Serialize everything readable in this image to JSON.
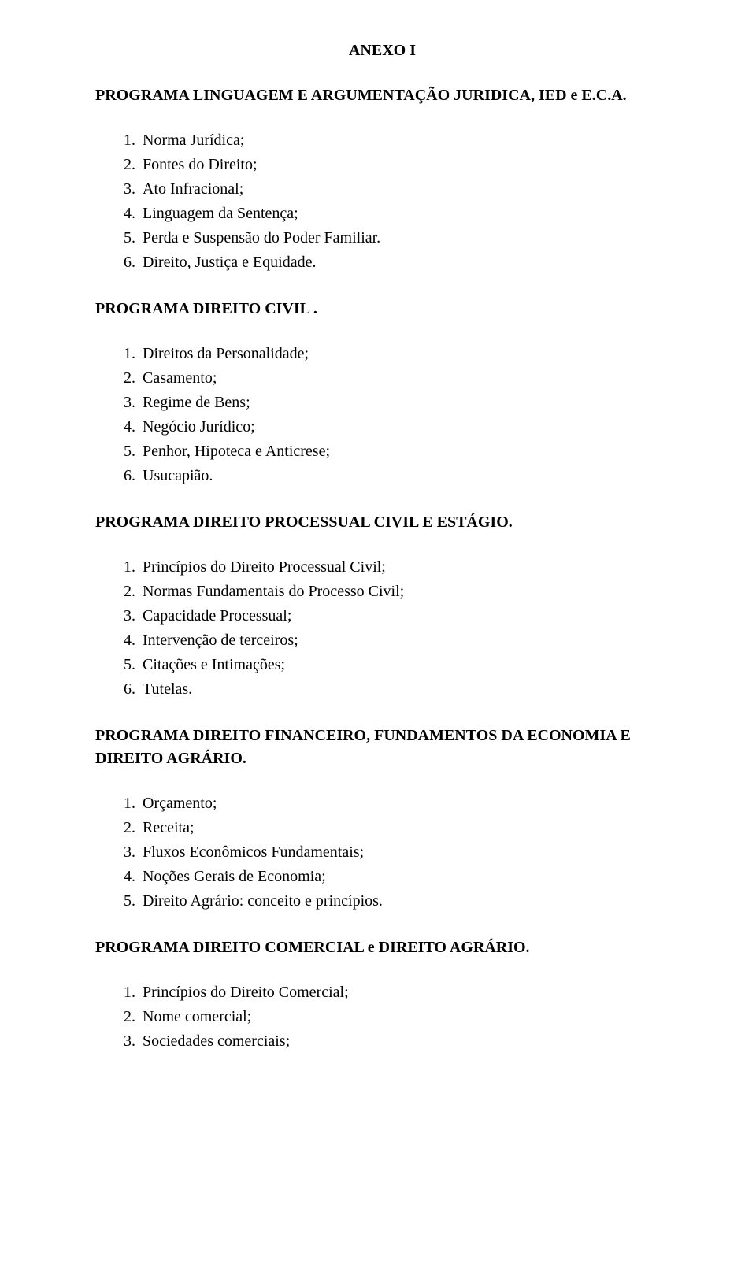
{
  "annex_title": "ANEXO I",
  "sections": [
    {
      "heading": "PROGRAMA LINGUAGEM  E ARGUMENTAÇÃO JURIDICA, IED e E.C.A.",
      "items": [
        "Norma Jurídica;",
        "Fontes do Direito;",
        "Ato Infracional;",
        "Linguagem da Sentença;",
        "Perda e Suspensão do Poder Familiar.",
        "Direito, Justiça e Equidade."
      ]
    },
    {
      "heading": "PROGRAMA DIREITO CIVIL .",
      "items": [
        "Direitos da Personalidade;",
        "Casamento;",
        "Regime de Bens;",
        "Negócio Jurídico;",
        "Penhor, Hipoteca e Anticrese;",
        "Usucapião."
      ]
    },
    {
      "heading": "PROGRAMA DIREITO PROCESSUAL CIVIL E ESTÁGIO.",
      "items": [
        "Princípios do Direito Processual Civil;",
        "Normas Fundamentais do Processo Civil;",
        "Capacidade Processual;",
        "Intervenção de terceiros;",
        "Citações e Intimações;",
        "Tutelas."
      ]
    },
    {
      "heading": "PROGRAMA DIREITO FINANCEIRO, FUNDAMENTOS DA ECONOMIA E DIREITO AGRÁRIO.",
      "items": [
        "Orçamento;",
        "Receita;",
        "Fluxos Econômicos Fundamentais;",
        "Noções Gerais de Economia;",
        "Direito Agrário: conceito e princípios."
      ]
    },
    {
      "heading": "PROGRAMA DIREITO COMERCIAL e DIREITO AGRÁRIO.",
      "items": [
        "Princípios do Direito Comercial;",
        "Nome comercial;",
        "Sociedades comerciais;"
      ]
    }
  ]
}
